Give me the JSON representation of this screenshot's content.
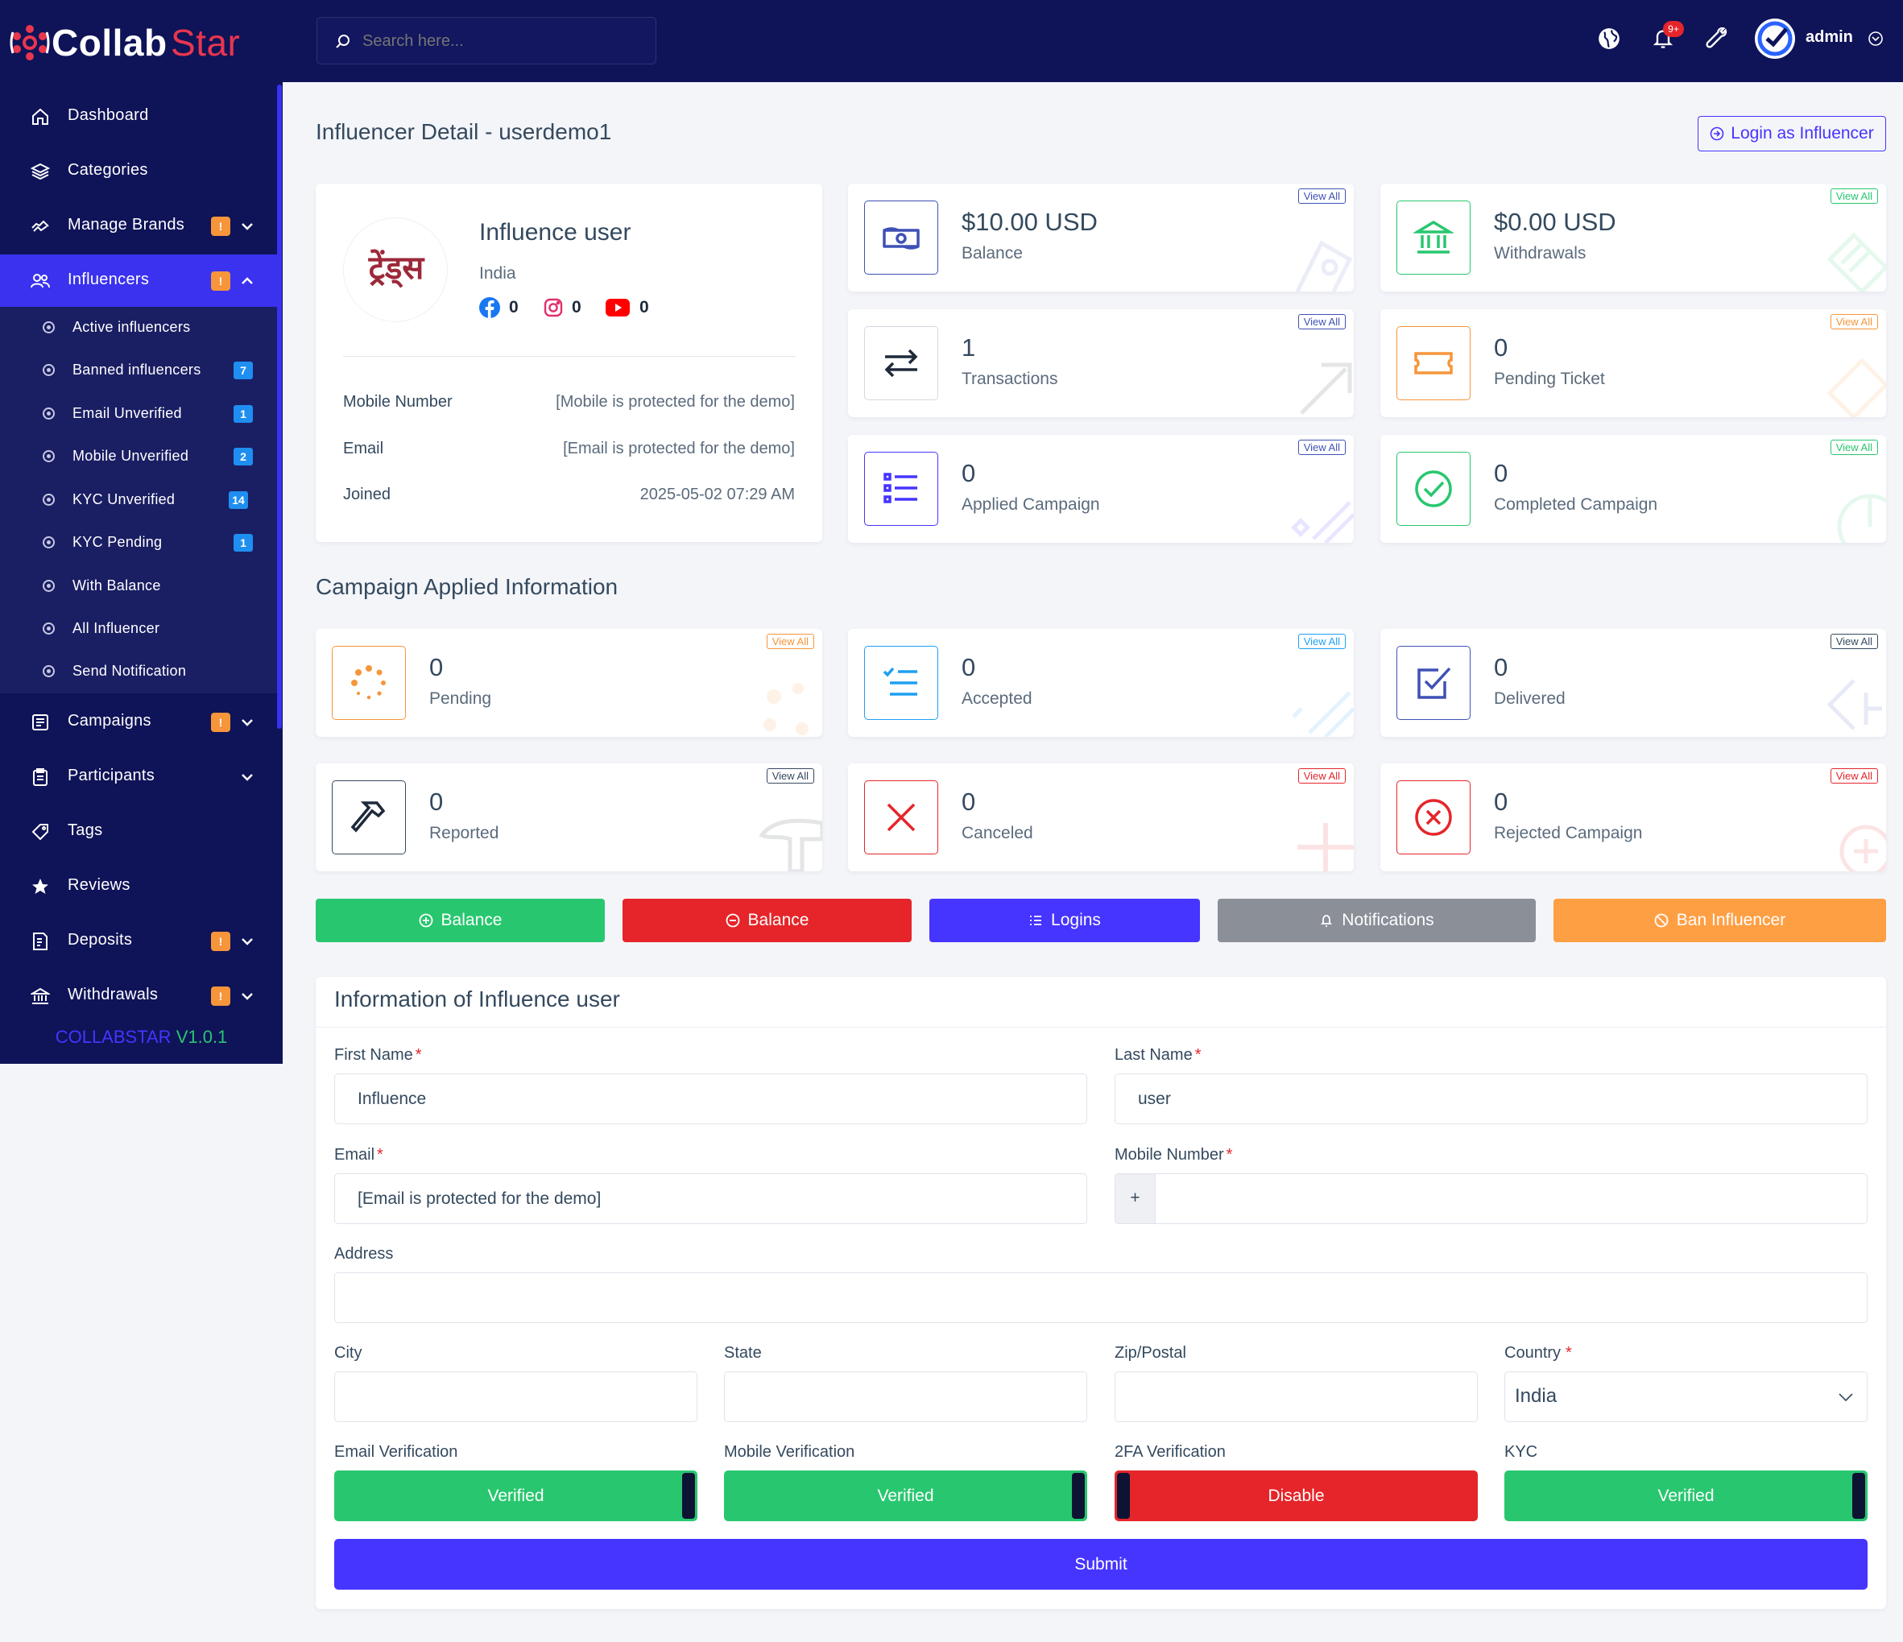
{
  "brand": {
    "name_a": "Collab",
    "name_b": "Star",
    "version_name": "COLLABSTAR",
    "version_num": "V1.0.1"
  },
  "header": {
    "search_placeholder": "Search here...",
    "notif_badge": "9+",
    "user_name": "admin"
  },
  "sidebar": {
    "items": [
      {
        "label": "Dashboard",
        "icon": "home-icon"
      },
      {
        "label": "Categories",
        "icon": "layers-icon"
      },
      {
        "label": "Manage Brands",
        "icon": "brands-icon",
        "badge": "!"
      },
      {
        "label": "Influencers",
        "icon": "users-icon",
        "badge": "!"
      },
      {
        "label": "Campaigns",
        "icon": "campaign-icon",
        "badge": "!"
      },
      {
        "label": "Participants",
        "icon": "clipboard-icon"
      },
      {
        "label": "Tags",
        "icon": "tag-icon"
      },
      {
        "label": "Reviews",
        "icon": "star-icon"
      },
      {
        "label": "Deposits",
        "icon": "deposit-icon",
        "badge": "!"
      },
      {
        "label": "Withdrawals",
        "icon": "bank-icon",
        "badge": "!"
      }
    ],
    "subitems": [
      {
        "label": "Active influencers"
      },
      {
        "label": "Banned influencers",
        "badge": "7"
      },
      {
        "label": "Email Unverified",
        "badge": "1"
      },
      {
        "label": "Mobile Unverified",
        "badge": "2"
      },
      {
        "label": "KYC Unverified",
        "badge": "14"
      },
      {
        "label": "KYC Pending",
        "badge": "1"
      },
      {
        "label": "With Balance"
      },
      {
        "label": "All Influencer"
      },
      {
        "label": "Send Notification"
      }
    ]
  },
  "page": {
    "title": "Influencer Detail - userdemo1",
    "login_as_label": "Login as Influencer"
  },
  "profile": {
    "logo_text": "ट्रेंड्स",
    "name": "Influence user",
    "country": "India",
    "facebook_count": "0",
    "instagram_count": "0",
    "youtube_count": "0",
    "rows": [
      {
        "label": "Mobile Number",
        "value": "[Mobile is protected for the demo]"
      },
      {
        "label": "Email",
        "value": "[Email is protected for the demo]"
      },
      {
        "label": "Joined",
        "value": "2025-05-02 07:29 AM"
      }
    ]
  },
  "view_all": "View All",
  "widgets": [
    {
      "value": "$10.00 USD",
      "label": "Balance",
      "icon": "money-icon",
      "color": "#3f51b5"
    },
    {
      "value": "$0.00 USD",
      "label": "Withdrawals",
      "icon": "bank-icon",
      "color": "#28c76f"
    },
    {
      "value": "1",
      "label": "Transactions",
      "icon": "exchange-icon",
      "color": "#1e2a3a"
    },
    {
      "value": "0",
      "label": "Pending Ticket",
      "icon": "ticket-icon",
      "color": "#f7953b"
    },
    {
      "value": "0",
      "label": "Applied Campaign",
      "icon": "list-icon",
      "color": "#4634ff"
    },
    {
      "value": "0",
      "label": "Completed Campaign",
      "icon": "check-circle-icon",
      "color": "#28c76f"
    }
  ],
  "campaign_section": {
    "title": "Campaign Applied Information"
  },
  "campaign_widgets": [
    {
      "value": "0",
      "label": "Pending",
      "icon": "spinner-icon",
      "color": "#f7953b"
    },
    {
      "value": "0",
      "label": "Accepted",
      "icon": "checklist-icon",
      "color": "#1e9ff2"
    },
    {
      "value": "0",
      "label": "Delivered",
      "icon": "checkbox-icon",
      "color": "#3f51b5"
    },
    {
      "value": "0",
      "label": "Reported",
      "icon": "gavel-icon",
      "color": "#1e2a3a"
    },
    {
      "value": "0",
      "label": "Canceled",
      "icon": "x-icon",
      "color": "#e5252a"
    },
    {
      "value": "0",
      "label": "Rejected Campaign",
      "icon": "x-circle-icon",
      "color": "#e5252a"
    }
  ],
  "actions": [
    {
      "label": "Balance",
      "icon": "plus-circle-icon",
      "color": "#28c76f"
    },
    {
      "label": "Balance",
      "icon": "minus-circle-icon",
      "color": "#e5252a"
    },
    {
      "label": "Logins",
      "icon": "list-icon",
      "color": "#4634ff"
    },
    {
      "label": "Notifications",
      "icon": "bell-icon",
      "color": "#8a8f98"
    },
    {
      "label": "Ban Influencer",
      "icon": "ban-icon",
      "color": "#ff9f43"
    }
  ],
  "form": {
    "title": "Information of Influence user",
    "first_name_label": "First Name",
    "first_name_value": "Influence",
    "last_name_label": "Last Name",
    "last_name_value": "user",
    "email_label": "Email",
    "email_value": "[Email is protected for the demo]",
    "mobile_label": "Mobile Number",
    "mobile_prefix": "+",
    "mobile_value": "",
    "address_label": "Address",
    "address_value": "",
    "city_label": "City",
    "state_label": "State",
    "zip_label": "Zip/Postal",
    "country_label": "Country",
    "country_value": "India",
    "email_ver_label": "Email Verification",
    "email_ver_value": "Verified",
    "mobile_ver_label": "Mobile Verification",
    "mobile_ver_value": "Verified",
    "tfa_label": "2FA Verification",
    "tfa_value": "Disable",
    "kyc_label": "KYC",
    "kyc_value": "Verified",
    "submit_label": "Submit",
    "required_mark": "*"
  }
}
